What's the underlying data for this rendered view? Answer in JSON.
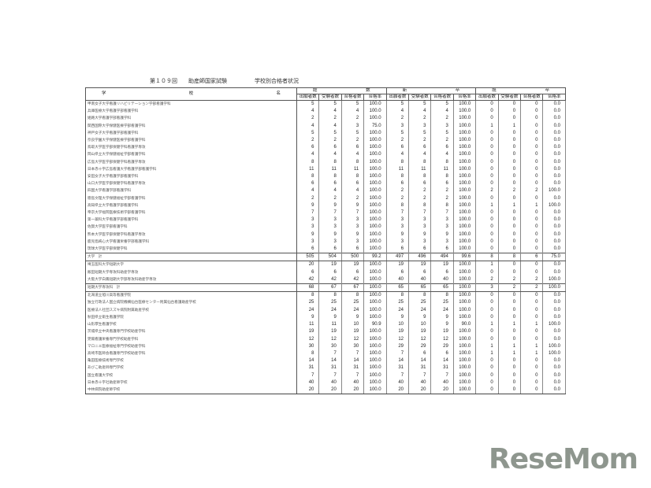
{
  "title": "第１０９回　　助産師国家試験　　　　　学校別合格者状況",
  "header": {
    "school_col": [
      "学",
      "校",
      "名"
    ],
    "groups": [
      [
        "総",
        "数"
      ],
      [
        "新",
        "卒"
      ],
      [
        "既",
        "卒"
      ]
    ],
    "sub": [
      "出願者数",
      "受験者数",
      "合格者数",
      "合格率"
    ]
  },
  "rows": [
    {
      "name": "甲南女子大学看護リハビリテーション学部看護学科",
      "v": [
        "5",
        "5",
        "5",
        "100.0",
        "5",
        "5",
        "5",
        "100.0",
        "0",
        "0",
        "0",
        "0.0"
      ]
    },
    {
      "name": "兵庫医療大学看護学部看護学科",
      "v": [
        "4",
        "4",
        "4",
        "100.0",
        "4",
        "4",
        "4",
        "100.0",
        "0",
        "0",
        "0",
        "0.0"
      ]
    },
    {
      "name": "姫路大学看護学部看護学科",
      "v": [
        "2",
        "2",
        "2",
        "100.0",
        "2",
        "2",
        "2",
        "100.0",
        "0",
        "0",
        "0",
        "0.0"
      ]
    },
    {
      "name": "関西国際大学保健医療学部看護学科",
      "v": [
        "4",
        "4",
        "3",
        "75.0",
        "3",
        "3",
        "3",
        "100.0",
        "1",
        "1",
        "0",
        "0.0"
      ]
    },
    {
      "name": "神戸女子大学看護学部看護学科",
      "v": [
        "5",
        "5",
        "5",
        "100.0",
        "5",
        "5",
        "5",
        "100.0",
        "0",
        "0",
        "0",
        "0.0"
      ]
    },
    {
      "name": "奈良学園大学保健医療学部看護学科",
      "v": [
        "2",
        "2",
        "2",
        "100.0",
        "2",
        "2",
        "2",
        "100.0",
        "0",
        "0",
        "0",
        "0.0"
      ]
    },
    {
      "name": "鳥取大学医学部保健学科看護学専攻",
      "v": [
        "6",
        "6",
        "6",
        "100.0",
        "6",
        "6",
        "6",
        "100.0",
        "0",
        "0",
        "0",
        "0.0"
      ]
    },
    {
      "name": "岡山県立大学保健福祉学部看護学科",
      "v": [
        "4",
        "4",
        "4",
        "100.0",
        "4",
        "4",
        "4",
        "100.0",
        "0",
        "0",
        "0",
        "0.0"
      ]
    },
    {
      "name": "広島大学医学部保健学科看護学専攻",
      "v": [
        "8",
        "8",
        "8",
        "100.0",
        "8",
        "8",
        "8",
        "100.0",
        "0",
        "0",
        "0",
        "0.0"
      ]
    },
    {
      "name": "日本赤十字広島看護大学看護学部看護学科",
      "v": [
        "11",
        "11",
        "11",
        "100.0",
        "11",
        "11",
        "11",
        "100.0",
        "0",
        "0",
        "0",
        "0.0"
      ]
    },
    {
      "name": "安田女子大学看護学部看護学科",
      "v": [
        "8",
        "8",
        "8",
        "100.0",
        "8",
        "8",
        "8",
        "100.0",
        "0",
        "0",
        "0",
        "0.0"
      ]
    },
    {
      "name": "山口大学医学部保健学科看護学専攻",
      "v": [
        "6",
        "6",
        "6",
        "100.0",
        "6",
        "6",
        "6",
        "100.0",
        "0",
        "0",
        "0",
        "0.0"
      ]
    },
    {
      "name": "四国大学看護学部看護学科",
      "v": [
        "4",
        "4",
        "4",
        "100.0",
        "2",
        "2",
        "2",
        "100.0",
        "2",
        "2",
        "2",
        "100.0"
      ]
    },
    {
      "name": "徳島文理大学保健福祉学部看護学科",
      "v": [
        "2",
        "2",
        "2",
        "100.0",
        "2",
        "2",
        "2",
        "100.0",
        "0",
        "0",
        "0",
        "0.0"
      ]
    },
    {
      "name": "高知県立大学看護学部看護学科",
      "v": [
        "9",
        "9",
        "9",
        "100.0",
        "8",
        "8",
        "8",
        "100.0",
        "1",
        "1",
        "1",
        "100.0"
      ]
    },
    {
      "name": "帝京大学福岡医療技術学部看護学科",
      "v": [
        "7",
        "7",
        "7",
        "100.0",
        "7",
        "7",
        "7",
        "100.0",
        "0",
        "0",
        "0",
        "0.0"
      ]
    },
    {
      "name": "第一薬科大学看護学部看護学科",
      "v": [
        "3",
        "3",
        "3",
        "100.0",
        "3",
        "3",
        "3",
        "100.0",
        "0",
        "0",
        "0",
        "0.0"
      ]
    },
    {
      "name": "佐賀大学医学部看護学科",
      "v": [
        "3",
        "3",
        "3",
        "100.0",
        "3",
        "3",
        "3",
        "100.0",
        "0",
        "0",
        "0",
        "0.0"
      ]
    },
    {
      "name": "熊本大学医学部保健学科看護学専攻",
      "v": [
        "9",
        "9",
        "9",
        "100.0",
        "9",
        "9",
        "9",
        "100.0",
        "0",
        "0",
        "0",
        "0.0"
      ]
    },
    {
      "name": "鹿児島純心大学看護栄養学部看護学科",
      "v": [
        "3",
        "3",
        "3",
        "100.0",
        "3",
        "3",
        "3",
        "100.0",
        "0",
        "0",
        "0",
        "0.0"
      ]
    },
    {
      "name": "琉球大学医学部保健学科",
      "v": [
        "6",
        "6",
        "6",
        "100.0",
        "6",
        "6",
        "6",
        "100.0",
        "0",
        "0",
        "0",
        "0.0"
      ]
    },
    {
      "name": "大学　計",
      "total": true,
      "v": [
        "505",
        "504",
        "500",
        "99.2",
        "497",
        "496",
        "494",
        "99.6",
        "8",
        "8",
        "6",
        "75.0"
      ]
    },
    {
      "name": "埼玉医科大学短期大学",
      "v": [
        "20",
        "19",
        "19",
        "100.0",
        "19",
        "19",
        "19",
        "100.0",
        "1",
        "0",
        "0",
        "0.0"
      ]
    },
    {
      "name": "飯田短期大学専攻科助産学専攻",
      "v": [
        "6",
        "6",
        "6",
        "100.0",
        "6",
        "6",
        "6",
        "100.0",
        "0",
        "0",
        "0",
        "0.0"
      ]
    },
    {
      "name": "大阪大学白鳳短期大学部専攻科助産学専攻",
      "v": [
        "42",
        "42",
        "42",
        "100.0",
        "40",
        "40",
        "40",
        "100.0",
        "2",
        "2",
        "2",
        "100.0"
      ]
    },
    {
      "name": "短期大学専攻科　計",
      "total": true,
      "v": [
        "68",
        "67",
        "67",
        "100.0",
        "65",
        "65",
        "65",
        "100.0",
        "3",
        "2",
        "2",
        "100.0"
      ]
    },
    {
      "name": "北海道立旭川高等看護学院",
      "v": [
        "8",
        "8",
        "8",
        "100.0",
        "8",
        "8",
        "8",
        "100.0",
        "0",
        "0",
        "0",
        "0.0"
      ]
    },
    {
      "name": "独立行政法人国立病院機構仙台医療センター附属仙台看護助産学校",
      "v": [
        "25",
        "25",
        "25",
        "100.0",
        "25",
        "25",
        "25",
        "100.0",
        "0",
        "0",
        "0",
        "0.0"
      ]
    },
    {
      "name": "医療法人社団スズキ病院附属助産学校",
      "v": [
        "24",
        "24",
        "24",
        "100.0",
        "24",
        "24",
        "24",
        "100.0",
        "0",
        "0",
        "0",
        "0.0"
      ]
    },
    {
      "name": "秋田県立衛生看護学院",
      "v": [
        "9",
        "9",
        "9",
        "100.0",
        "9",
        "9",
        "9",
        "100.0",
        "0",
        "0",
        "0",
        "0.0"
      ]
    },
    {
      "name": "山形厚生看護学校",
      "v": [
        "11",
        "11",
        "10",
        "90.9",
        "10",
        "10",
        "9",
        "90.0",
        "1",
        "1",
        "1",
        "100.0"
      ]
    },
    {
      "name": "茨城県立中央看護専門学校助産学科",
      "v": [
        "19",
        "19",
        "19",
        "100.0",
        "19",
        "19",
        "19",
        "100.0",
        "0",
        "0",
        "0",
        "0.0"
      ]
    },
    {
      "name": "晃陽看護栄養専門学校助産学科",
      "v": [
        "12",
        "12",
        "12",
        "100.0",
        "12",
        "12",
        "12",
        "100.0",
        "0",
        "0",
        "0",
        "0.0"
      ]
    },
    {
      "name": "マロニエ医療福祉専門学校助産学科",
      "v": [
        "30",
        "30",
        "30",
        "100.0",
        "29",
        "29",
        "29",
        "100.0",
        "1",
        "1",
        "1",
        "100.0"
      ]
    },
    {
      "name": "高崎市医師会看護専門学校助産学科",
      "v": [
        "8",
        "7",
        "7",
        "100.0",
        "7",
        "6",
        "6",
        "100.0",
        "1",
        "1",
        "1",
        "100.0"
      ]
    },
    {
      "name": "亀田医療技術専門学校",
      "v": [
        "14",
        "14",
        "14",
        "100.0",
        "14",
        "14",
        "14",
        "100.0",
        "0",
        "0",
        "0",
        "0.0"
      ]
    },
    {
      "name": "あびこ助産師専門学校",
      "v": [
        "31",
        "31",
        "31",
        "100.0",
        "31",
        "31",
        "31",
        "100.0",
        "0",
        "0",
        "0",
        "0.0"
      ]
    },
    {
      "name": "国立看護大学校",
      "v": [
        "7",
        "7",
        "7",
        "100.0",
        "7",
        "7",
        "7",
        "100.0",
        "0",
        "0",
        "0",
        "0.0"
      ]
    },
    {
      "name": "日本赤十字社助産師学校",
      "v": [
        "40",
        "40",
        "40",
        "100.0",
        "40",
        "40",
        "40",
        "100.0",
        "0",
        "0",
        "0",
        "0.0"
      ]
    },
    {
      "name": "中林病院助産師学校",
      "v": [
        "20",
        "20",
        "20",
        "100.0",
        "20",
        "20",
        "20",
        "100.0",
        "0",
        "0",
        "0",
        "0.0"
      ]
    }
  ],
  "watermark": "ReseMom",
  "colors": {
    "watermark": "#6e786e",
    "rule": "#555555"
  }
}
